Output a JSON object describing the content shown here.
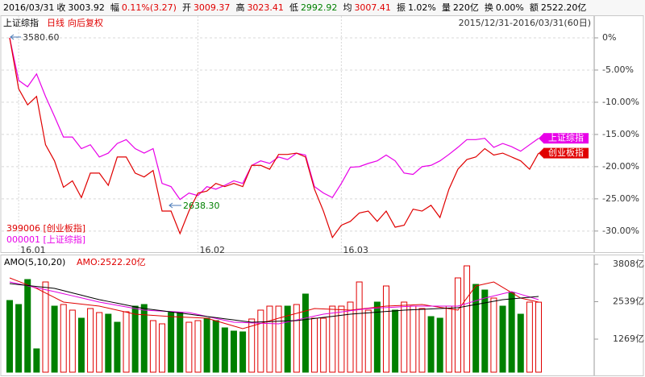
{
  "header": {
    "date": "2016/03/31",
    "items": [
      {
        "label": "收",
        "value": "3003.92",
        "color": "#000000"
      },
      {
        "label": "幅",
        "value": "0.11%(3.27)",
        "color": "#e00000"
      },
      {
        "label": "开",
        "value": "3009.37",
        "color": "#e00000"
      },
      {
        "label": "高",
        "value": "3023.41",
        "color": "#e00000"
      },
      {
        "label": "低",
        "value": "2992.92",
        "color": "#008000"
      },
      {
        "label": "均",
        "value": "3007.41",
        "color": "#e00000"
      },
      {
        "label": "振",
        "value": "1.02%",
        "color": "#000000"
      },
      {
        "label": "量",
        "value": "220亿",
        "color": "#000000"
      },
      {
        "label": "换",
        "value": "0.00%",
        "color": "#000000"
      },
      {
        "label": "额",
        "value": "2522.20亿",
        "color": "#000000"
      }
    ]
  },
  "subheader": {
    "name": "上证综指",
    "period": "日线",
    "adjust": "向后复权",
    "range": "2015/12/31-2016/03/31(60日)"
  },
  "chart_data": [
    {
      "type": "line",
      "categories": [
        null,
        "16.01",
        null,
        null,
        null,
        null,
        null,
        null,
        null,
        null,
        null,
        null,
        null,
        null,
        null,
        null,
        null,
        null,
        null,
        null,
        null,
        "16.02",
        null,
        null,
        null,
        null,
        null,
        null,
        null,
        null,
        null,
        null,
        null,
        null,
        null,
        null,
        null,
        "16.03",
        null,
        null,
        null,
        null,
        null,
        null,
        null,
        null,
        null,
        null,
        null,
        null,
        null,
        null,
        null,
        null,
        null,
        null,
        null,
        null,
        null,
        null
      ],
      "series": [
        {
          "name": "上证综指",
          "color": "#e800e8",
          "values": [
            0,
            -6.6,
            -7.6,
            -5.6,
            -9.1,
            -12.2,
            -15.4,
            -15.4,
            -17.2,
            -16.6,
            -18.5,
            -17.9,
            -16.4,
            -15.8,
            -17.2,
            -17.9,
            -17.2,
            -22.6,
            -23.1,
            -25.1,
            -24.1,
            -24.5,
            -23.1,
            -23.5,
            -22.9,
            -22.2,
            -22.6,
            -19.8,
            -19.1,
            -19.5,
            -18.5,
            -18.9,
            -17.9,
            -18.2,
            -23.1,
            -24.1,
            -24.8,
            -22.6,
            -20.1,
            -20.0,
            -19.5,
            -19.1,
            -18.2,
            -19.1,
            -21.0,
            -21.2,
            -20.0,
            -19.8,
            -19.1,
            -18.1,
            -17.0,
            -15.8,
            -15.8,
            -15.6,
            -17.0,
            -16.4,
            -16.9,
            -17.6,
            -16.6,
            -15.6
          ]
        },
        {
          "name": "创业板指",
          "color": "#e00000",
          "values": [
            0,
            -7.9,
            -10.4,
            -9.1,
            -16.6,
            -19.1,
            -23.2,
            -22.2,
            -24.8,
            -21.0,
            -21.0,
            -22.9,
            -18.5,
            -18.5,
            -21.0,
            -21.6,
            -20.6,
            -26.9,
            -26.9,
            -30.4,
            -26.9,
            -24.1,
            -23.8,
            -22.6,
            -23.1,
            -22.6,
            -23.1,
            -19.8,
            -19.8,
            -20.4,
            -18.1,
            -18.1,
            -17.9,
            -18.5,
            -23.5,
            -26.9,
            -31.0,
            -29.1,
            -28.5,
            -27.2,
            -26.9,
            -28.5,
            -26.9,
            -29.4,
            -29.1,
            -26.6,
            -26.9,
            -26.0,
            -27.9,
            -23.5,
            -20.4,
            -18.9,
            -18.5,
            -17.2,
            -18.2,
            -17.9,
            -18.5,
            -19.1,
            -20.4,
            -17.9
          ]
        }
      ],
      "legend": [
        {
          "label": "399006 [创业板指]",
          "color": "#e00000"
        },
        {
          "label": "000001 [上证综指]",
          "color": "#e800e8"
        }
      ],
      "annotations": [
        {
          "text": "3580.60",
          "color": "#333333"
        },
        {
          "text": "2638.30",
          "color": "#008000"
        }
      ],
      "ylim": [
        -32.9,
        1.25
      ],
      "yticks": [
        {
          "value": 0,
          "label": "0%"
        },
        {
          "value": -5,
          "label": "-5.00%"
        },
        {
          "value": -10,
          "label": "-10.00%"
        },
        {
          "value": -15,
          "label": "-15.00%"
        },
        {
          "value": -20,
          "label": "-20.00%"
        },
        {
          "value": -25,
          "label": "-25.00%"
        },
        {
          "value": -30,
          "label": "-30.00%"
        }
      ],
      "grid": true
    },
    {
      "type": "bar",
      "title": "AMO(5,10,20)",
      "annotation": "AMO:2522.20亿",
      "hollow_color": "#e00000",
      "values": [
        2579,
        2443,
        3289,
        941,
        3207,
        2388,
        2443,
        2252,
        1979,
        2306,
        2170,
        2115,
        1842,
        2197,
        2388,
        2443,
        1897,
        1788,
        2170,
        2170,
        1842,
        1897,
        1979,
        1897,
        1651,
        1542,
        1515,
        1952,
        2252,
        2388,
        2388,
        2388,
        2443,
        2798,
        1979,
        1979,
        2388,
        2388,
        2525,
        3207,
        2252,
        2525,
        3071,
        2252,
        2525,
        2388,
        2306,
        2033,
        1979,
        2388,
        3344,
        3753,
        3125,
        2934,
        2661,
        2388,
        2852,
        2115,
        2525,
        2522.2
      ],
      "colors": [
        "#008000",
        "#008000",
        "#008000",
        "#008000",
        "#e00000",
        "#008000",
        "#e00000",
        "#e00000",
        "#008000",
        "#e00000",
        "#e00000",
        "#008000",
        "#008000",
        "#e00000",
        "#008000",
        "#008000",
        "#e00000",
        "#e00000",
        "#008000",
        "#008000",
        "#e00000",
        "#e00000",
        "#008000",
        "#008000",
        "#008000",
        "#008000",
        "#008000",
        "#e00000",
        "#e00000",
        "#e00000",
        "#e00000",
        "#008000",
        "#e00000",
        "#008000",
        "#e00000",
        "#e00000",
        "#e00000",
        "#e00000",
        "#e00000",
        "#e00000",
        "#e00000",
        "#008000",
        "#e00000",
        "#008000",
        "#e00000",
        "#e00000",
        "#e00000",
        "#008000",
        "#008000",
        "#e00000",
        "#e00000",
        "#e00000",
        "#008000",
        "#008000",
        "#e00000",
        "#008000",
        "#008000",
        "#008000",
        "#e00000",
        "#e00000"
      ],
      "lines": [
        {
          "color": "#e00000",
          "values": [
            3344,
            3226,
            3107,
            2989,
            2834,
            2680,
            2525,
            2491,
            2457,
            2422,
            2388,
            2320,
            2252,
            2183,
            2115,
            2095,
            2074,
            2054,
            2033,
            2020,
            2006,
            1993,
            1979,
            1890,
            1802,
            1713,
            1624,
            1713,
            1802,
            1890,
            1979,
            2061,
            2143,
            2224,
            2306,
            2293,
            2279,
            2266,
            2252,
            2286,
            2320,
            2354,
            2388,
            2402,
            2415,
            2429,
            2443,
            2395,
            2348,
            2300,
            2252,
            2662,
            3071,
            3139,
            3207,
            3025,
            2843,
            2661,
            2593,
            2525
          ]
        },
        {
          "color": "#e000e0",
          "values": [
            3207,
            3142,
            3076,
            3011,
            2945,
            2880,
            2809,
            2738,
            2667,
            2596,
            2525,
            2470,
            2416,
            2361,
            2307,
            2252,
            2236,
            2219,
            2203,
            2186,
            2170,
            2104,
            2039,
            1973,
            1908,
            1842,
            1831,
            1820,
            1810,
            1799,
            1788,
            1853,
            1919,
            1984,
            2050,
            2115,
            2153,
            2191,
            2230,
            2268,
            2306,
            2322,
            2339,
            2355,
            2372,
            2388,
            2388,
            2388,
            2388,
            2388,
            2388,
            2479,
            2570,
            2661,
            2734,
            2807,
            2880,
            2789,
            2698,
            2607
          ]
        },
        {
          "color": "#000000",
          "values": [
            3153,
            3120,
            3088,
            3055,
            3022,
            2989,
            2913,
            2836,
            2760,
            2683,
            2607,
            2547,
            2487,
            2426,
            2366,
            2306,
            2268,
            2230,
            2191,
            2153,
            2115,
            2076,
            2037,
            1998,
            1959,
            1920,
            1881,
            1842,
            1853,
            1864,
            1875,
            1886,
            1897,
            1933,
            1970,
            2006,
            2042,
            2079,
            2115,
            2138,
            2161,
            2184,
            2206,
            2229,
            2252,
            2266,
            2279,
            2293,
            2307,
            2320,
            2334,
            2389,
            2443,
            2498,
            2552,
            2607,
            2634,
            2662,
            2689,
            2716
          ]
        }
      ],
      "ylim": [
        150,
        4081
      ],
      "yticks": [
        {
          "value": 1269,
          "label": "1269亿"
        },
        {
          "value": 2539,
          "label": "2539亿"
        },
        {
          "value": 3808,
          "label": "3808亿"
        }
      ],
      "grid": false
    }
  ]
}
